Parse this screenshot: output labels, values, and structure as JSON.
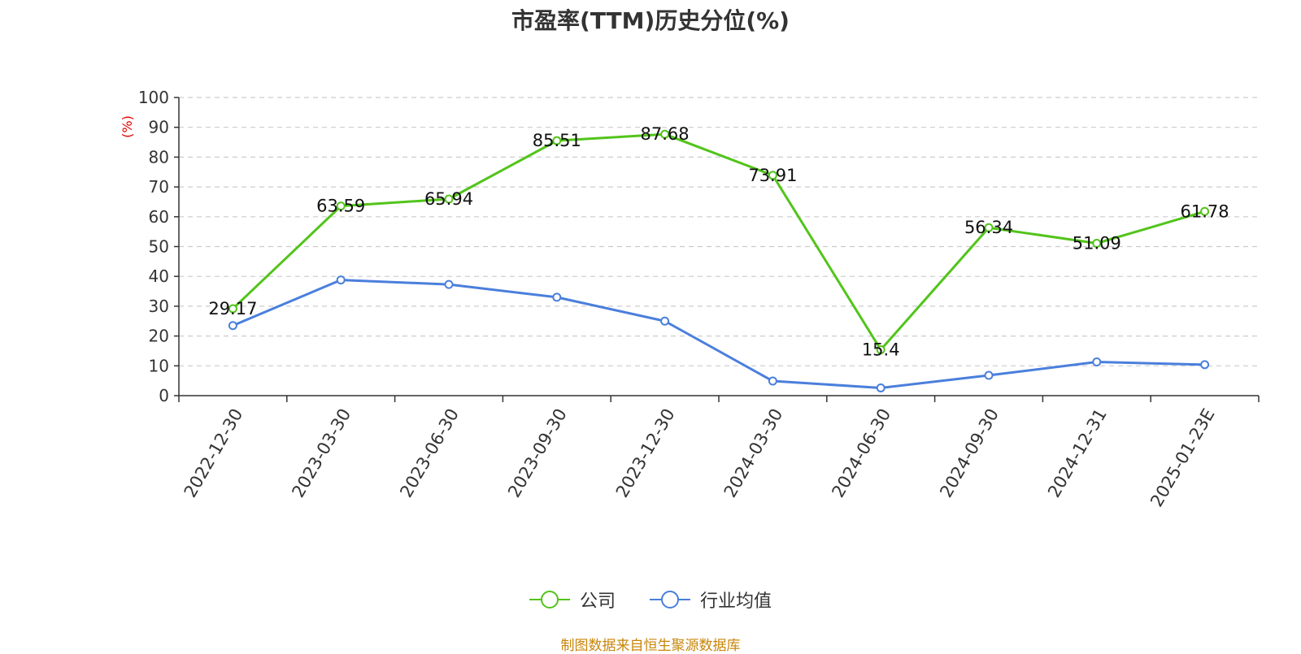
{
  "chart_data": {
    "type": "line",
    "title": "市盈率(TTM)历史分位(%)",
    "ylabel": "(%)",
    "xlabel": "",
    "ylim": [
      0,
      100
    ],
    "yticks": [
      0,
      10,
      20,
      30,
      40,
      50,
      60,
      70,
      80,
      90,
      100
    ],
    "grid": true,
    "legend_position": "bottom-center",
    "categories": [
      "2022-12-30",
      "2023-03-30",
      "2023-06-30",
      "2023-09-30",
      "2023-12-30",
      "2024-03-30",
      "2024-06-30",
      "2024-09-30",
      "2024-12-31",
      "2025-01-23E"
    ],
    "series": [
      {
        "name": "公司",
        "color": "#52c41a",
        "show_labels": true,
        "values": [
          29.17,
          63.59,
          65.94,
          85.51,
          87.68,
          73.91,
          15.4,
          56.34,
          51.09,
          61.78
        ]
      },
      {
        "name": "行业均值",
        "color": "#4a7fdc",
        "show_labels": false,
        "values": [
          23.5,
          38.8,
          37.3,
          33.0,
          25.0,
          4.9,
          2.6,
          6.8,
          11.3,
          10.4
        ]
      }
    ]
  },
  "source": "制图数据来自恒生聚源数据库",
  "colors": {
    "axis": "#333333",
    "ylabel": "#e00000",
    "grid": "#cccccc",
    "source": "#c8860a"
  }
}
